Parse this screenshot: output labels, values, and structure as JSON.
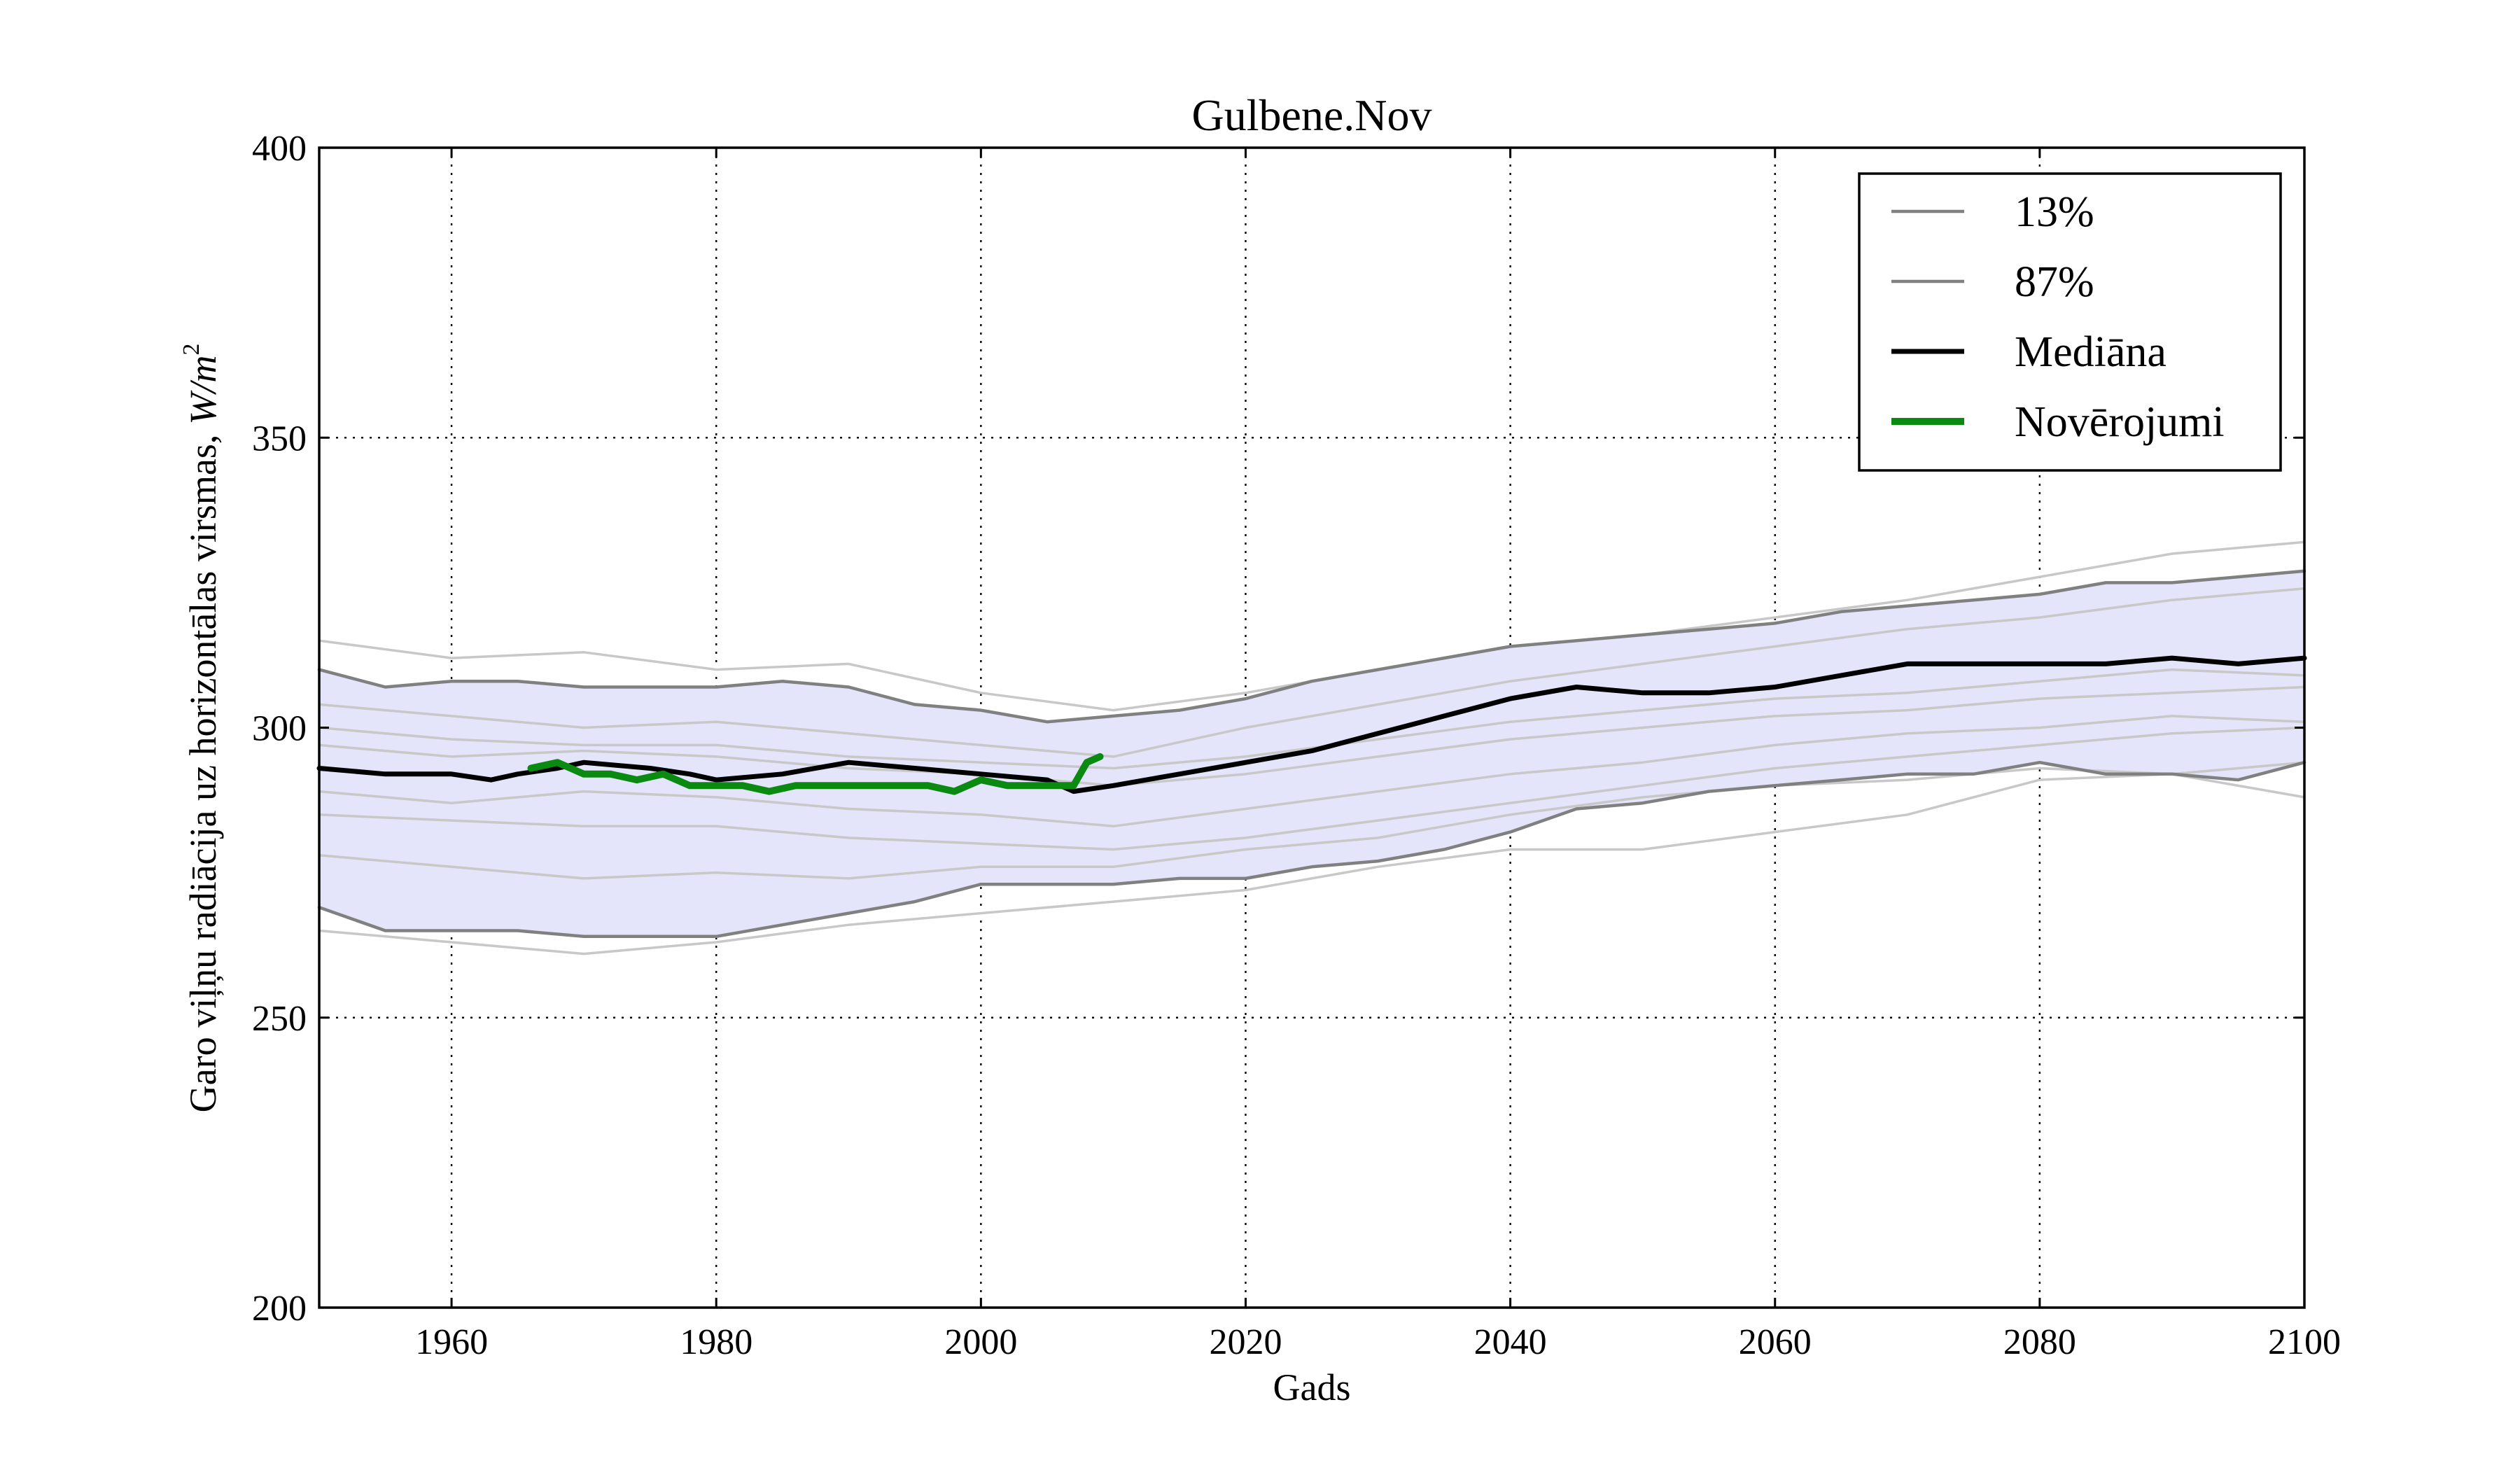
{
  "chart_data": {
    "type": "line",
    "title": "Gulbene.Nov",
    "xlabel": "Gads",
    "ylabel": "Garo viļņu radiācija uz horizontālas virsmas,",
    "ylabel_unit_main": "W/m",
    "ylabel_unit_sup": "2",
    "xlim": [
      1950,
      2100
    ],
    "ylim": [
      200,
      400
    ],
    "xticks": [
      1960,
      1980,
      2000,
      2020,
      2040,
      2060,
      2080,
      2100
    ],
    "yticks": [
      200,
      250,
      300,
      350,
      400
    ],
    "grid": true,
    "legend_position": "top-right",
    "colors": {
      "band_fill": "#e4e4fb",
      "percentile": "#808080",
      "median": "#000000",
      "observations": "#0b8a12",
      "ensemble": "#c8c8c8"
    },
    "legend": [
      {
        "label": "13%",
        "style": "percentile"
      },
      {
        "label": "87%",
        "style": "percentile"
      },
      {
        "label": "Mediāna",
        "style": "median"
      },
      {
        "label": "Novērojumi",
        "style": "observations"
      }
    ],
    "band": {
      "x": [
        1950,
        1955,
        1960,
        1965,
        1970,
        1975,
        1980,
        1985,
        1990,
        1995,
        2000,
        2005,
        2010,
        2015,
        2020,
        2025,
        2030,
        2035,
        2040,
        2045,
        2050,
        2055,
        2060,
        2065,
        2070,
        2075,
        2080,
        2085,
        2090,
        2095,
        2100
      ],
      "upper": [
        310,
        307,
        308,
        308,
        307,
        307,
        307,
        308,
        307,
        304,
        303,
        301,
        302,
        303,
        305,
        308,
        310,
        312,
        314,
        315,
        316,
        317,
        318,
        320,
        321,
        322,
        323,
        325,
        325,
        326,
        327
      ],
      "lower": [
        269,
        265,
        265,
        265,
        264,
        264,
        264,
        266,
        268,
        270,
        273,
        273,
        273,
        274,
        274,
        276,
        277,
        279,
        282,
        286,
        287,
        289,
        290,
        291,
        292,
        292,
        294,
        292,
        292,
        291,
        294
      ]
    },
    "series": [
      {
        "name": "13%",
        "style": "percentile",
        "x": [
          1950,
          1955,
          1960,
          1965,
          1970,
          1975,
          1980,
          1985,
          1990,
          1995,
          2000,
          2005,
          2010,
          2015,
          2020,
          2025,
          2030,
          2035,
          2040,
          2045,
          2050,
          2055,
          2060,
          2065,
          2070,
          2075,
          2080,
          2085,
          2090,
          2095,
          2100
        ],
        "y": [
          269,
          265,
          265,
          265,
          264,
          264,
          264,
          266,
          268,
          270,
          273,
          273,
          273,
          274,
          274,
          276,
          277,
          279,
          282,
          286,
          287,
          289,
          290,
          291,
          292,
          292,
          294,
          292,
          292,
          291,
          294
        ]
      },
      {
        "name": "87%",
        "style": "percentile",
        "x": [
          1950,
          1955,
          1960,
          1965,
          1970,
          1975,
          1980,
          1985,
          1990,
          1995,
          2000,
          2005,
          2010,
          2015,
          2020,
          2025,
          2030,
          2035,
          2040,
          2045,
          2050,
          2055,
          2060,
          2065,
          2070,
          2075,
          2080,
          2085,
          2090,
          2095,
          2100
        ],
        "y": [
          310,
          307,
          308,
          308,
          307,
          307,
          307,
          308,
          307,
          304,
          303,
          301,
          302,
          303,
          305,
          308,
          310,
          312,
          314,
          315,
          316,
          317,
          318,
          320,
          321,
          322,
          323,
          325,
          325,
          326,
          327
        ]
      },
      {
        "name": "Mediāna",
        "style": "median",
        "x": [
          1950,
          1955,
          1960,
          1963,
          1965,
          1968,
          1970,
          1975,
          1978,
          1980,
          1985,
          1990,
          1995,
          2000,
          2005,
          2007,
          2010,
          2015,
          2020,
          2025,
          2030,
          2035,
          2040,
          2045,
          2050,
          2055,
          2060,
          2065,
          2070,
          2075,
          2080,
          2085,
          2090,
          2095,
          2100
        ],
        "y": [
          293,
          292,
          292,
          291,
          292,
          293,
          294,
          293,
          292,
          291,
          292,
          294,
          293,
          292,
          291,
          289,
          290,
          292,
          294,
          296,
          299,
          302,
          305,
          307,
          306,
          306,
          307,
          309,
          311,
          311,
          311,
          311,
          312,
          311,
          312
        ]
      },
      {
        "name": "Novērojumi",
        "style": "observations",
        "x": [
          1966,
          1968,
          1970,
          1972,
          1974,
          1976,
          1978,
          1980,
          1982,
          1984,
          1986,
          1988,
          1990,
          1992,
          1994,
          1996,
          1998,
          2000,
          2002,
          2004,
          2006,
          2007,
          2008,
          2009
        ],
        "y": [
          293,
          294,
          292,
          292,
          291,
          292,
          290,
          290,
          290,
          289,
          290,
          290,
          290,
          290,
          290,
          290,
          289,
          291,
          290,
          290,
          290,
          290,
          294,
          295
        ]
      }
    ],
    "ensemble": [
      {
        "x": [
          1950,
          1960,
          1970,
          1980,
          1990,
          2000,
          2010,
          2020,
          2030,
          2040,
          2050,
          2060,
          2070,
          2080,
          2090,
          2100
        ],
        "y": [
          315,
          312,
          313,
          310,
          311,
          306,
          303,
          306,
          310,
          314,
          316,
          319,
          322,
          326,
          330,
          332
        ]
      },
      {
        "x": [
          1950,
          1960,
          1970,
          1980,
          1990,
          2000,
          2010,
          2020,
          2030,
          2040,
          2050,
          2060,
          2070,
          2080,
          2090,
          2100
        ],
        "y": [
          304,
          302,
          300,
          301,
          299,
          297,
          295,
          300,
          304,
          308,
          311,
          314,
          317,
          319,
          322,
          324
        ]
      },
      {
        "x": [
          1950,
          1960,
          1970,
          1980,
          1990,
          2000,
          2010,
          2020,
          2030,
          2040,
          2050,
          2060,
          2070,
          2080,
          2090,
          2100
        ],
        "y": [
          300,
          298,
          297,
          297,
          295,
          294,
          293,
          295,
          298,
          301,
          303,
          305,
          306,
          308,
          310,
          309
        ]
      },
      {
        "x": [
          1950,
          1960,
          1970,
          1980,
          1990,
          2000,
          2010,
          2020,
          2030,
          2040,
          2050,
          2060,
          2070,
          2080,
          2090,
          2100
        ],
        "y": [
          297,
          295,
          296,
          295,
          293,
          292,
          290,
          292,
          295,
          298,
          300,
          302,
          303,
          305,
          306,
          307
        ]
      },
      {
        "x": [
          1950,
          1960,
          1970,
          1980,
          1990,
          2000,
          2010,
          2020,
          2030,
          2040,
          2050,
          2060,
          2070,
          2080,
          2090,
          2100
        ],
        "y": [
          289,
          287,
          289,
          288,
          286,
          285,
          283,
          286,
          289,
          292,
          294,
          297,
          299,
          300,
          302,
          301
        ]
      },
      {
        "x": [
          1950,
          1960,
          1970,
          1980,
          1990,
          2000,
          2010,
          2020,
          2030,
          2040,
          2050,
          2060,
          2070,
          2080,
          2090,
          2100
        ],
        "y": [
          285,
          284,
          283,
          283,
          281,
          280,
          279,
          281,
          284,
          287,
          290,
          293,
          295,
          297,
          299,
          300
        ]
      },
      {
        "x": [
          1950,
          1960,
          1970,
          1980,
          1990,
          2000,
          2010,
          2020,
          2030,
          2040,
          2050,
          2060,
          2070,
          2080,
          2090,
          2100
        ],
        "y": [
          278,
          276,
          274,
          275,
          274,
          276,
          276,
          279,
          281,
          285,
          288,
          290,
          291,
          293,
          292,
          288
        ]
      },
      {
        "x": [
          1950,
          1960,
          1970,
          1980,
          1990,
          2000,
          2010,
          2020,
          2030,
          2040,
          2050,
          2060,
          2070,
          2080,
          2090,
          2100
        ],
        "y": [
          265,
          263,
          261,
          263,
          266,
          268,
          270,
          272,
          276,
          279,
          279,
          282,
          285,
          291,
          292,
          294
        ]
      }
    ]
  }
}
